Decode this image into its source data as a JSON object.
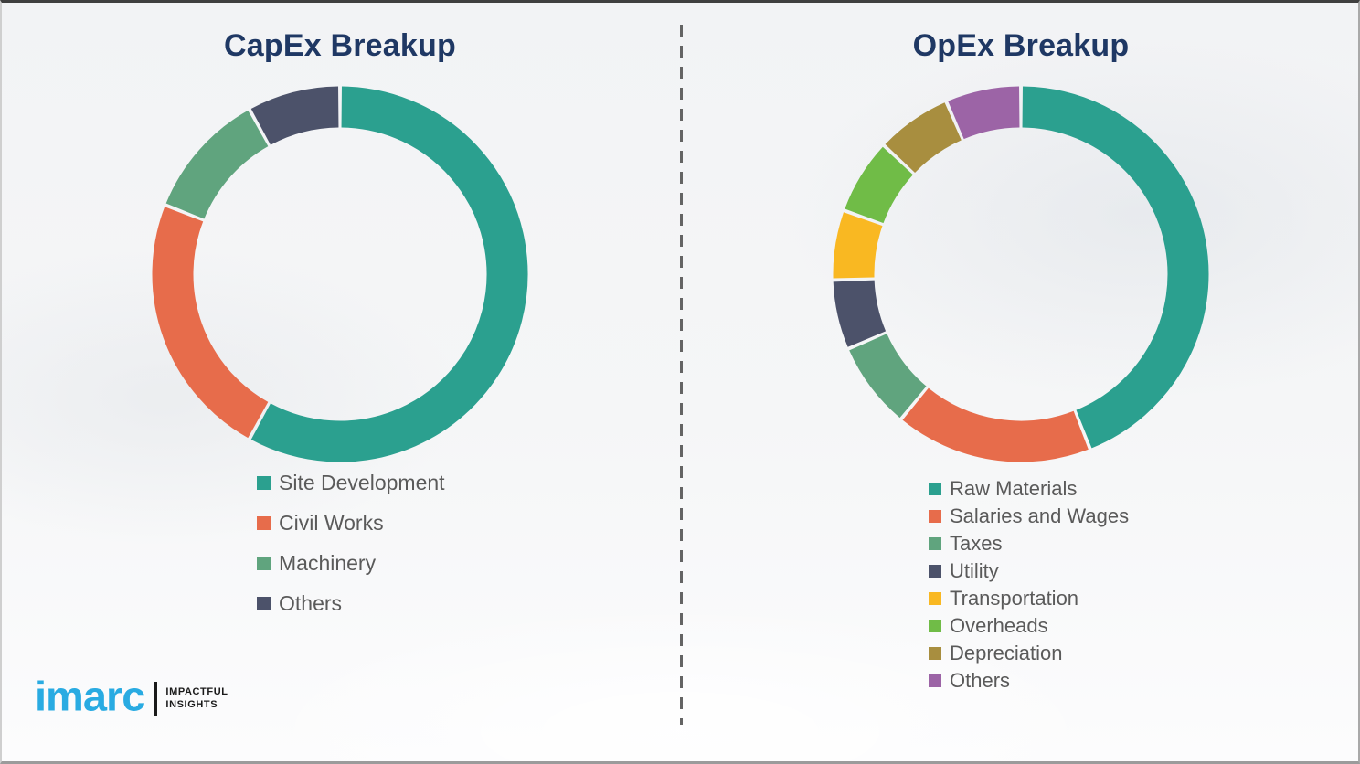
{
  "chart_data": [
    {
      "type": "pie",
      "subtype": "donut",
      "title": "CapEx Breakup",
      "values_are_estimates_from_arc_angles": true,
      "legend_position": "below-chart",
      "series": [
        {
          "label": "Site Development",
          "value": 58,
          "color": "#2BA08F"
        },
        {
          "label": "Civil Works",
          "value": 23,
          "color": "#E76C4B"
        },
        {
          "label": "Machinery",
          "value": 11,
          "color": "#60A47E"
        },
        {
          "label": "Others",
          "value": 8,
          "color": "#4C526A"
        }
      ]
    },
    {
      "type": "pie",
      "subtype": "donut",
      "title": "OpEx Breakup",
      "values_are_estimates_from_arc_angles": true,
      "legend_position": "below-chart",
      "series": [
        {
          "label": "Raw Materials",
          "value": 44,
          "color": "#2BA08F"
        },
        {
          "label": "Salaries and Wages",
          "value": 17,
          "color": "#E76C4B"
        },
        {
          "label": "Taxes",
          "value": 7.5,
          "color": "#60A47E"
        },
        {
          "label": "Utility",
          "value": 6,
          "color": "#4C526A"
        },
        {
          "label": "Transportation",
          "value": 6,
          "color": "#F9B822"
        },
        {
          "label": "Overheads",
          "value": 6.5,
          "color": "#70BC47"
        },
        {
          "label": "Depreciation",
          "value": 6.5,
          "color": "#A88E3F"
        },
        {
          "label": "Others",
          "value": 6.5,
          "color": "#9C64A6"
        }
      ]
    }
  ],
  "branding": {
    "logo_text": "imarc",
    "tagline": [
      "IMPACTFUL",
      "INSIGHTS"
    ],
    "logo_color": "#29ABE2"
  },
  "colors": {
    "title_text": "#1F3864",
    "legend_text": "#5A5A5A"
  }
}
